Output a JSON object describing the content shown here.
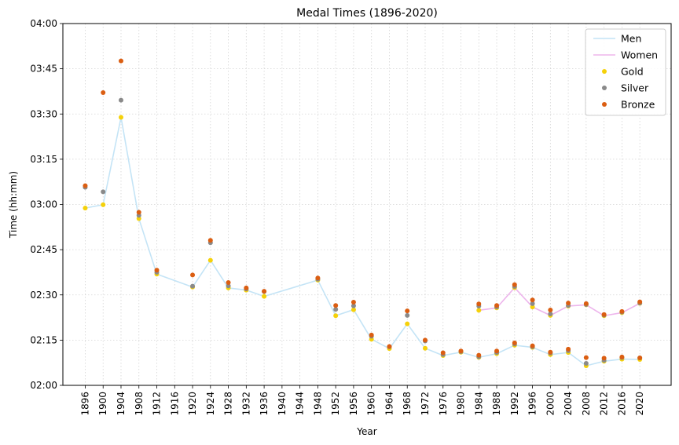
{
  "chart_data": {
    "type": "line",
    "title": "Medal Times (1896-2020)",
    "xlabel": "Year",
    "ylabel": "Time (hh:mm)",
    "x_ticks": [
      1896,
      1900,
      1904,
      1908,
      1912,
      1916,
      1920,
      1924,
      1928,
      1932,
      1936,
      1940,
      1944,
      1948,
      1952,
      1956,
      1960,
      1964,
      1968,
      1972,
      1976,
      1980,
      1984,
      1988,
      1992,
      1996,
      2000,
      2004,
      2008,
      2012,
      2016,
      2020
    ],
    "xlim": [
      1891,
      2027
    ],
    "ylim": [
      120,
      240
    ],
    "y_ticks": [
      {
        "value": 120,
        "label": "02:00"
      },
      {
        "value": 135,
        "label": "02:15"
      },
      {
        "value": 150,
        "label": "02:30"
      },
      {
        "value": 165,
        "label": "02:45"
      },
      {
        "value": 180,
        "label": "03:00"
      },
      {
        "value": 195,
        "label": "03:15"
      },
      {
        "value": 210,
        "label": "03:30"
      },
      {
        "value": 225,
        "label": "03:45"
      },
      {
        "value": 240,
        "label": "04:00"
      }
    ],
    "grid": true,
    "legend_position": "top-right",
    "series": [
      {
        "name": "Men",
        "kind": "line",
        "color": "#c4e4f6",
        "x": [
          1896,
          1900,
          1904,
          1908,
          1912,
          1920,
          1924,
          1928,
          1932,
          1936,
          1948,
          1952,
          1956,
          1960,
          1964,
          1968,
          1972,
          1976,
          1980,
          1984,
          1988,
          1992,
          1996,
          2000,
          2004,
          2008,
          2012,
          2016,
          2020
        ],
        "values": [
          178.8,
          179.9,
          208.9,
          175.3,
          156.9,
          152.6,
          161.5,
          152.3,
          151.6,
          149.5,
          154.9,
          143.1,
          145.1,
          135.3,
          132.2,
          140.4,
          132.3,
          129.9,
          131.0,
          129.3,
          130.5,
          133.3,
          132.6,
          130.2,
          130.9,
          126.5,
          128.0,
          128.7,
          128.6
        ]
      },
      {
        "name": "Women",
        "kind": "line",
        "color": "#edb5ec",
        "x": [
          1984,
          1988,
          1992,
          1996,
          2000,
          2004,
          2008,
          2012,
          2016,
          2020
        ],
        "values": [
          144.9,
          145.7,
          152.4,
          146.0,
          143.2,
          146.3,
          146.7,
          143.1,
          144.1,
          147.2
        ]
      },
      {
        "name": "Gold",
        "kind": "scatter",
        "color": "#f5d10a",
        "x": [
          1896,
          1900,
          1904,
          1908,
          1912,
          1920,
          1924,
          1928,
          1932,
          1936,
          1948,
          1952,
          1956,
          1960,
          1964,
          1968,
          1972,
          1976,
          1980,
          1984,
          1988,
          1992,
          1996,
          2000,
          2004,
          2008,
          2012,
          2016,
          2020,
          1984,
          1988,
          1992,
          1996,
          2000,
          2004,
          2008,
          2012,
          2016,
          2020
        ],
        "values": [
          178.8,
          179.9,
          208.9,
          175.3,
          156.9,
          152.6,
          161.5,
          152.3,
          151.6,
          149.5,
          154.9,
          143.1,
          145.1,
          135.3,
          132.2,
          140.4,
          132.3,
          129.9,
          131.0,
          129.3,
          130.5,
          133.3,
          132.6,
          130.2,
          130.9,
          126.5,
          128.0,
          128.7,
          128.6,
          144.9,
          145.7,
          152.4,
          146.0,
          143.2,
          146.3,
          146.7,
          143.1,
          144.1,
          147.2
        ]
      },
      {
        "name": "Silver",
        "kind": "scatter",
        "color": "#8a8a8a",
        "x": [
          1896,
          1900,
          1904,
          1908,
          1912,
          1920,
          1924,
          1928,
          1932,
          1936,
          1948,
          1952,
          1956,
          1960,
          1964,
          1968,
          1972,
          1976,
          1980,
          1984,
          1988,
          1992,
          1996,
          2000,
          2004,
          2008,
          2012,
          2016,
          2020,
          1984,
          1988,
          1992,
          1996,
          2000,
          2004,
          2008,
          2012,
          2016,
          2020
        ],
        "values": [
          185.7,
          184.2,
          214.6,
          176.4,
          157.5,
          152.9,
          167.3,
          153.0,
          152.0,
          151.1,
          155.2,
          145.2,
          146.4,
          136.3,
          132.8,
          143.2,
          134.7,
          130.2,
          131.2,
          129.5,
          130.9,
          133.7,
          132.8,
          130.7,
          131.5,
          127.3,
          128.3,
          129.2,
          129.1,
          146.3,
          146.0,
          152.8,
          147.1,
          143.7,
          146.5,
          146.8,
          143.3,
          144.3,
          147.3
        ]
      },
      {
        "name": "Bronze",
        "kind": "scatter",
        "color": "#db5e12",
        "x": [
          1896,
          1900,
          1904,
          1908,
          1912,
          1920,
          1924,
          1928,
          1932,
          1936,
          1948,
          1952,
          1956,
          1960,
          1964,
          1968,
          1972,
          1976,
          1980,
          1984,
          1988,
          1992,
          1996,
          2000,
          2004,
          2008,
          2012,
          2016,
          2020,
          1984,
          1988,
          1992,
          1996,
          2000,
          2004,
          2008,
          2012,
          2016,
          2020
        ],
        "values": [
          186.2,
          217.1,
          227.6,
          177.4,
          158.2,
          156.6,
          168.1,
          154.1,
          152.3,
          151.2,
          155.6,
          146.5,
          147.6,
          136.7,
          132.9,
          144.7,
          135.0,
          130.8,
          131.4,
          130.0,
          131.4,
          134.1,
          133.1,
          131.0,
          132.0,
          129.2,
          129.0,
          129.4,
          129.1,
          147.0,
          146.5,
          153.4,
          148.3,
          145.0,
          147.3,
          147.1,
          143.5,
          144.5,
          147.7
        ]
      }
    ]
  }
}
